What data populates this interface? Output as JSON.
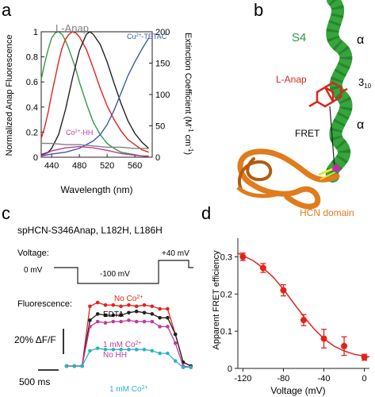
{
  "panel_labels": {
    "a": "a",
    "b": "b",
    "c": "c",
    "d": "d"
  },
  "colors": {
    "black": "#231f20",
    "green": "#2f9a44",
    "red": "#e2231a",
    "blue": "#3a5ba9",
    "magenta": "#c03a9c",
    "cyan": "#2bb3c4",
    "gray": "#808080",
    "orange": "#e07c1c",
    "helix_green": "#36a53b",
    "anap_red": "#d32a1f",
    "co_magenta": "#c02fa8",
    "yellow": "#e7e23a"
  },
  "panel_a": {
    "ylabel_left": "Normalized Anap Fluorescence",
    "ylabel_right": "Extinction Coefficient (M⁻¹ cm⁻¹)",
    "ylabel_right_parts": [
      "Extinction Coefficient (M",
      "-1",
      " cm",
      "-1",
      ")"
    ],
    "xlabel": "Wavelength (nm)",
    "label_lanap": "L-Anap",
    "label_cu": "Cu²⁺-TETAC",
    "label_cu_parts": [
      "Cu",
      "2+",
      "-TETAC"
    ],
    "label_co": "Co²⁺-HH",
    "label_co_parts": [
      "Co",
      "2+",
      "-HH"
    ]
  },
  "panel_b": {
    "label_s4": "S4",
    "label_alpha_top": "α",
    "label_alpha_bottom": "α",
    "label_310": "3₁₀",
    "label_310_parts": [
      "3",
      "10"
    ],
    "label_lanap": "L-Anap",
    "label_fret": "FRET",
    "label_hcn": "HCN domain"
  },
  "panel_c": {
    "title": "spHCN-S346Anap, L182H, L186H",
    "voltage_label": "Voltage:",
    "v_hold": "0 mV",
    "v_step": "-100 mV",
    "v_end": "+40 mV",
    "fluor_label": "Fluorescence:",
    "labels": {
      "no_co": "No Co²⁺",
      "edta": "EDTA",
      "co_no_hh": "1 mM Co²⁺ No HH",
      "co": "1 mM Co²⁺"
    },
    "label_parts": {
      "no_co": [
        "No Co",
        "2+"
      ],
      "co_no_hh_1": [
        "1 mM Co",
        "2+"
      ],
      "co_no_hh_2": "No HH",
      "co": [
        "1 mM Co",
        "2+"
      ]
    },
    "scale_y": "20% ΔF/F",
    "scale_x": "500 ms"
  },
  "chart_data": [
    {
      "panel": "a",
      "type": "line",
      "xlabel": "Wavelength (nm)",
      "ylabel": "Normalized Anap Fluorescence",
      "ylabel_right": "Extinction Coefficient (M⁻¹ cm⁻¹)",
      "xlim": [
        425,
        585
      ],
      "ylim": [
        0,
        1
      ],
      "ylim_right": [
        0,
        200
      ],
      "x_ticks": [
        440,
        480,
        520,
        560
      ],
      "y_ticks": [
        0,
        0.2,
        0.4,
        0.6,
        0.8,
        1
      ],
      "y_ticks_right": [
        0,
        50,
        100,
        150,
        200
      ],
      "series": [
        {
          "axis": "left",
          "color": "green",
          "x": [
            425,
            430,
            435,
            440,
            445,
            450,
            455,
            460,
            465,
            470,
            475,
            480,
            490,
            500,
            510,
            520,
            530,
            540,
            550,
            560,
            570,
            580
          ],
          "y": [
            0.62,
            0.75,
            0.86,
            0.95,
            0.99,
            1.0,
            0.98,
            0.93,
            0.86,
            0.78,
            0.7,
            0.6,
            0.43,
            0.28,
            0.18,
            0.11,
            0.07,
            0.04,
            0.03,
            0.02,
            0.01,
            0.01
          ]
        },
        {
          "axis": "left",
          "color": "red",
          "x": [
            425,
            430,
            435,
            440,
            445,
            450,
            455,
            460,
            465,
            470,
            475,
            480,
            490,
            500,
            510,
            520,
            530,
            540,
            550,
            560,
            570,
            580
          ],
          "y": [
            0.15,
            0.24,
            0.36,
            0.5,
            0.63,
            0.76,
            0.87,
            0.94,
            0.98,
            1.0,
            0.99,
            0.96,
            0.86,
            0.71,
            0.55,
            0.41,
            0.3,
            0.21,
            0.14,
            0.1,
            0.06,
            0.04
          ]
        },
        {
          "axis": "left",
          "color": "black",
          "x": [
            425,
            430,
            435,
            440,
            450,
            460,
            470,
            480,
            490,
            495,
            500,
            510,
            520,
            530,
            540,
            550,
            560,
            570,
            580
          ],
          "y": [
            0.02,
            0.03,
            0.04,
            0.07,
            0.18,
            0.38,
            0.63,
            0.85,
            0.98,
            1.0,
            0.98,
            0.9,
            0.76,
            0.59,
            0.43,
            0.29,
            0.19,
            0.12,
            0.07
          ]
        },
        {
          "axis": "right",
          "name": "Cu²⁺-TETAC",
          "color": "blue",
          "x": [
            425,
            440,
            460,
            480,
            500,
            510,
            520,
            530,
            540,
            550,
            560,
            570,
            580
          ],
          "y": [
            2,
            5,
            8,
            14,
            26,
            36,
            52,
            75,
            102,
            130,
            152,
            172,
            190
          ]
        },
        {
          "axis": "right",
          "name": "Co²⁺-HH",
          "color": "magenta",
          "x": [
            425,
            440,
            460,
            480,
            500,
            520,
            540,
            560,
            580
          ],
          "y": [
            2,
            10,
            15,
            17,
            15,
            11,
            6,
            3,
            1
          ]
        },
        {
          "axis": "left",
          "color": "gray",
          "x": [
            425,
            440,
            460,
            480,
            500,
            520,
            540,
            560,
            580
          ],
          "y": [
            0.11,
            0.11,
            0.1,
            0.1,
            0.09,
            0.08,
            0.08,
            0.07,
            0.07
          ]
        }
      ]
    },
    {
      "panel": "c",
      "type": "line",
      "series": [
        {
          "name": "No Co²⁺",
          "color": "red",
          "values": [
            0,
            0,
            0,
            47,
            50,
            48,
            48,
            47,
            48,
            47,
            48,
            47,
            45,
            45,
            25,
            3,
            0
          ]
        },
        {
          "name": "EDTA",
          "color": "black",
          "values": [
            0,
            0,
            0,
            36,
            41,
            40,
            40,
            40,
            42,
            43,
            42,
            41,
            38,
            38,
            25,
            3,
            0
          ]
        },
        {
          "name": "1 mM Co²⁺ No HH",
          "color": "magenta",
          "values": [
            0,
            0,
            0,
            31,
            35,
            34,
            35,
            35,
            36,
            35,
            35,
            35,
            31,
            31,
            18,
            0,
            -1
          ]
        },
        {
          "name": "1 mM Co²⁺",
          "color": "cyan",
          "values": [
            0,
            0,
            0,
            12,
            14,
            13,
            13,
            13,
            13,
            13,
            13,
            12,
            10,
            10,
            4,
            -1,
            -1
          ]
        }
      ]
    },
    {
      "panel": "d",
      "type": "scatter",
      "xlabel": "Voltage (mV)",
      "ylabel": "Apparent FRET efficiency",
      "xlim": [
        -125,
        5
      ],
      "ylim": [
        0,
        0.35
      ],
      "x_ticks": [
        -120,
        -80,
        -40,
        0
      ],
      "y_ticks": [
        0,
        0.1,
        0.2,
        0.3
      ],
      "points": [
        {
          "x": -120,
          "y": 0.3,
          "err": 0.01
        },
        {
          "x": -100,
          "y": 0.27,
          "err": 0.012
        },
        {
          "x": -80,
          "y": 0.21,
          "err": 0.015
        },
        {
          "x": -60,
          "y": 0.13,
          "err": 0.015
        },
        {
          "x": -40,
          "y": 0.08,
          "err": 0.025
        },
        {
          "x": -20,
          "y": 0.06,
          "err": 0.025
        },
        {
          "x": 0,
          "y": 0.03,
          "err": 0.008
        }
      ],
      "fit": {
        "x": [
          -125,
          -120,
          -110,
          -100,
          -90,
          -80,
          -70,
          -60,
          -50,
          -40,
          -30,
          -20,
          -10,
          0,
          5
        ],
        "y": [
          0.31,
          0.303,
          0.29,
          0.27,
          0.245,
          0.213,
          0.176,
          0.14,
          0.107,
          0.08,
          0.06,
          0.047,
          0.038,
          0.033,
          0.031
        ]
      }
    }
  ]
}
